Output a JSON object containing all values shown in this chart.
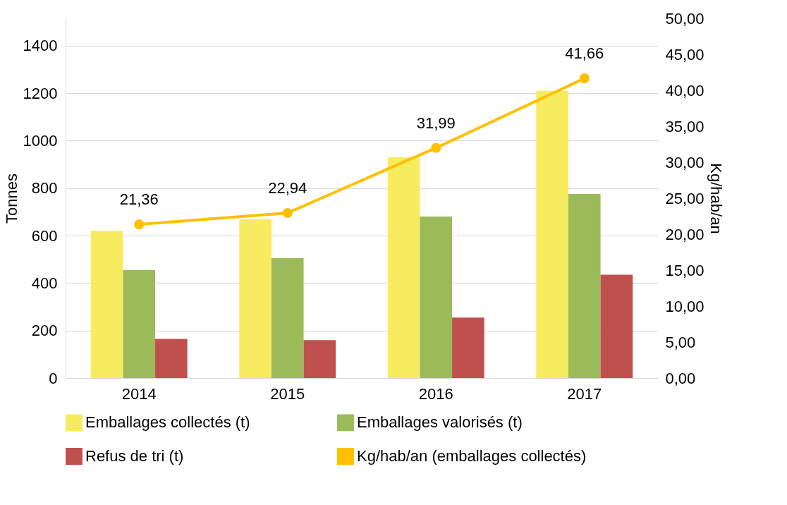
{
  "chart_data": {
    "type": "bar",
    "categories": [
      "2014",
      "2015",
      "2016",
      "2017"
    ],
    "ylabel": "Tonnes",
    "y2label": "Kg/hab/an",
    "ylim": [
      0,
      1515
    ],
    "yticks": [
      0,
      200,
      400,
      600,
      800,
      1000,
      1200,
      1400
    ],
    "y2lim": [
      0,
      50
    ],
    "y2ticks": [
      {
        "value": 0,
        "label": "0,00"
      },
      {
        "value": 5,
        "label": "5,00"
      },
      {
        "value": 10,
        "label": "10,00"
      },
      {
        "value": 15,
        "label": "15,00"
      },
      {
        "value": 20,
        "label": "20,00"
      },
      {
        "value": 25,
        "label": "25,00"
      },
      {
        "value": 30,
        "label": "30,00"
      },
      {
        "value": 35,
        "label": "35,00"
      },
      {
        "value": 40,
        "label": "40,00"
      },
      {
        "value": 45,
        "label": "45,00"
      },
      {
        "value": 50,
        "label": "50,00"
      }
    ],
    "grid": "y",
    "legend": "bottom",
    "series": [
      {
        "name": "Emballages collectés (t)",
        "color": "#f7ec5f",
        "values": [
          620,
          670,
          930,
          1210
        ]
      },
      {
        "name": "Emballages valorisés (t)",
        "color": "#9bbb59",
        "values": [
          455,
          505,
          680,
          775
        ]
      },
      {
        "name": "Refus de tri (t)",
        "color": "#c0504d",
        "values": [
          165,
          160,
          255,
          435
        ]
      },
      {
        "name": "Kg/hab/an (emballages collectés)",
        "type": "line",
        "axis": "y2",
        "color": "#ffc000",
        "marker": "circle",
        "values": [
          21.36,
          22.94,
          31.99,
          41.66
        ],
        "value_labels": [
          "21,36",
          "22,94",
          "31,99",
          "41,66"
        ]
      }
    ]
  }
}
